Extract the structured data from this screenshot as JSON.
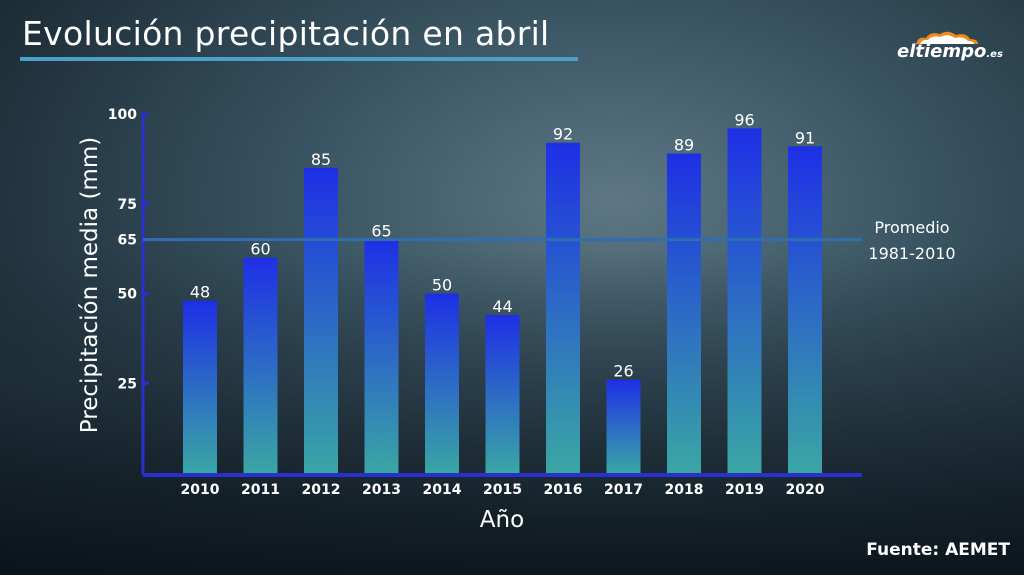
{
  "title": "Evolución precipitación en abril",
  "logo": {
    "text": "eltiempo",
    "suffix": ".es"
  },
  "source": "Fuente: AEMET",
  "colors": {
    "bar_top": "#1e2fe6",
    "bar_bottom": "#3aa6a4",
    "axis": "#2a2fd0",
    "average_line": "#2f6fb0",
    "title_underline": "#4aa0c8"
  },
  "chart_data": {
    "type": "bar",
    "categories": [
      "2010",
      "2011",
      "2012",
      "2013",
      "2014",
      "2015",
      "2016",
      "2017",
      "2018",
      "2019",
      "2020"
    ],
    "values": [
      48,
      60,
      85,
      65,
      50,
      44,
      92,
      26,
      89,
      96,
      91
    ],
    "value_labels": [
      "48",
      "60",
      "85",
      "65",
      "50",
      "44",
      "92",
      "26",
      "89",
      "96",
      "91"
    ],
    "xlabel": "Año",
    "ylabel": "Precipitación media (mm)",
    "ylim": [
      0,
      100
    ],
    "yticks": [
      25,
      50,
      65,
      75,
      100
    ],
    "ytick_labels": [
      "25",
      "50",
      "65",
      "75",
      "100"
    ],
    "grid": false,
    "reference_line": {
      "value": 65,
      "label_line1": "Promedio",
      "label_line2": "1981-2010"
    }
  }
}
